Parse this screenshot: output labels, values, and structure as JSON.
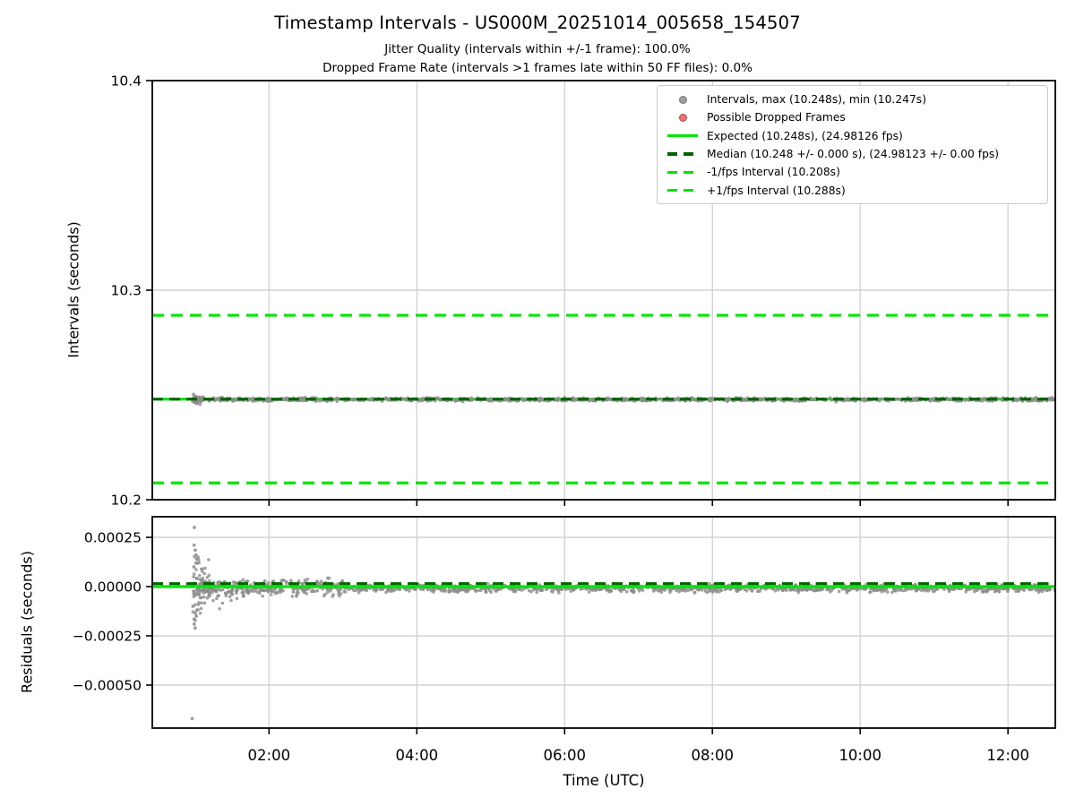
{
  "chart_data": {
    "type": "scatter",
    "title": "Timestamp Intervals - US000M_20251014_005658_154507",
    "subtitles": [
      "Jitter Quality (intervals within +/-1 frame): 100.0%",
      "Dropped Frame Rate (intervals >1 frames late within 50 FF files): 0.0%"
    ],
    "xlabel": "Time (UTC)",
    "x_range_hours": [
      0.42,
      12.64
    ],
    "x_ticks": [
      {
        "t": 2,
        "label": "02:00"
      },
      {
        "t": 4,
        "label": "04:00"
      },
      {
        "t": 6,
        "label": "06:00"
      },
      {
        "t": 8,
        "label": "08:00"
      },
      {
        "t": 10,
        "label": "10:00"
      },
      {
        "t": 12,
        "label": "12:00"
      }
    ],
    "top_plot": {
      "ylabel": "Intervals (seconds)",
      "ylim": [
        10.2,
        10.4
      ],
      "yticks": [
        {
          "v": 10.4,
          "label": "10.4"
        },
        {
          "v": 10.3,
          "label": "10.3"
        },
        {
          "v": 10.2,
          "label": "10.2"
        }
      ],
      "expected_interval_s": 10.248,
      "expected_fps": 24.98126,
      "median_interval_s": 10.248,
      "median_interval_tol_s": 0.0,
      "median_fps": 24.98123,
      "interval_max_s": 10.248,
      "interval_min_s": 10.247,
      "minus_1fps_interval_s": 10.208,
      "plus_1fps_interval_s": 10.288,
      "data_start_hours": 0.97,
      "data_end_hours": 12.64,
      "scatter_bands": [
        {
          "n": 1250,
          "t_min": 0.97,
          "t_max": 12.64,
          "center": 10.2478,
          "spread": 0.0004
        },
        {
          "n": 55,
          "t_min": 0.96,
          "t_max": 1.12,
          "center": 10.2478,
          "spread": 0.001
        }
      ]
    },
    "bottom_plot": {
      "ylabel": "Residuals (seconds)",
      "ylim": [
        -0.000718,
        0.000355
      ],
      "yticks": [
        {
          "v": 0.00025,
          "label": "0.00025"
        },
        {
          "v": 0.0,
          "label": "0.00000"
        },
        {
          "v": -0.00025,
          "label": "−0.00025"
        },
        {
          "v": -0.0005,
          "label": "−0.00050"
        }
      ],
      "expected_residual_s": 0.0,
      "median_residual_s": 1.5e-05,
      "scatter_bands": [
        {
          "n": 1150,
          "t_min": 3.0,
          "t_max": 12.64,
          "center": -8e-06,
          "spread": 9e-06
        },
        {
          "n": 320,
          "t_min": 1.05,
          "t_max": 3.0,
          "center": -6e-06,
          "spread": 2e-05
        },
        {
          "n": 60,
          "t_min": 0.97,
          "t_max": 1.2,
          "center": 0.0,
          "spread": 7e-05
        },
        {
          "n": 25,
          "t_min": 1.0,
          "t_max": 1.6,
          "center": -4e-05,
          "spread": 3e-05
        }
      ],
      "spike_column": {
        "t": 1.0,
        "values": [
          0.0003,
          0.00021,
          0.000185,
          0.00016,
          0.00014,
          0.00012,
          0.0001,
          -0.0001,
          -0.00012,
          -0.000135,
          -0.00015,
          -0.000165,
          -0.00019,
          -0.00021
        ]
      },
      "outliers": [
        {
          "t": 0.96,
          "v": -0.00067
        }
      ]
    },
    "legend": {
      "items": [
        {
          "marker": "dot",
          "color": "#9e9e9e",
          "label": "Intervals, max (10.248s), min (10.247s)"
        },
        {
          "marker": "dot",
          "color": "#ee6f6f",
          "label": "Possible Dropped Frames"
        },
        {
          "marker": "solid",
          "color": "#00e500",
          "label": "Expected (10.248s), (24.98126 fps)"
        },
        {
          "marker": "dashed",
          "color": "#006400",
          "label": "Median (10.248 +/- 0.000 s), (24.98123 +/- 0.00 fps)"
        },
        {
          "marker": "dashed",
          "color": "#00e500",
          "label": "-1/fps Interval (10.208s)"
        },
        {
          "marker": "dashed",
          "color": "#00e500",
          "label": "+1/fps Interval (10.288s)"
        }
      ]
    },
    "colors": {
      "scatter": "#8c8c8c",
      "dropped": "#ee6f6f",
      "expected_line": "#00e500",
      "median_line": "#006400",
      "fps_band_line": "#00e500",
      "grid": "#d4d4d4",
      "spine": "#000000",
      "text": "#000000"
    },
    "layout_hints": {
      "grid": true,
      "legend_position": "upper right"
    }
  }
}
